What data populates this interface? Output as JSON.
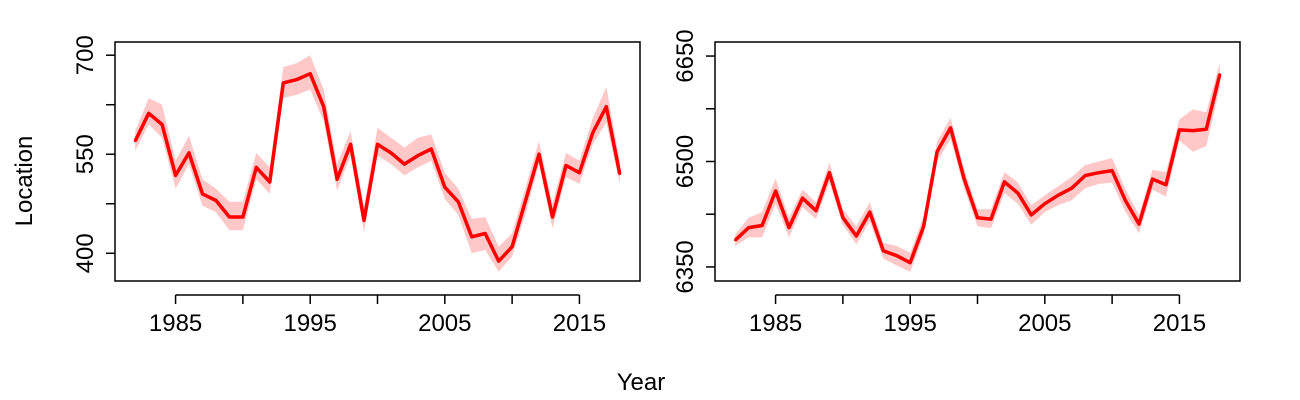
{
  "figure": {
    "xlabel": "Year",
    "ylabel": "Location",
    "line_color": "#ff0000",
    "band_color": "#ffc8c8"
  },
  "chart_data": [
    {
      "type": "line",
      "x_ticks": [
        1985,
        1995,
        2005,
        2015
      ],
      "y_ticks": [
        400,
        550,
        700
      ],
      "xlim": [
        1980.5,
        2019.5
      ],
      "ylim": [
        358,
        720
      ],
      "series": [
        {
          "x": [
            1982,
            1983,
            1984,
            1985,
            1986,
            1987,
            1988,
            1989,
            1990,
            1991,
            1992,
            1993,
            1994,
            1995,
            1996,
            1997,
            1998,
            1999,
            2000,
            2001,
            2002,
            2003,
            2004,
            2005,
            2006,
            2007,
            2008,
            2009,
            2010,
            2011,
            2012,
            2013,
            2014,
            2015,
            2016,
            2017,
            2018
          ],
          "y": [
            570,
            612,
            595,
            518,
            552,
            490,
            480,
            455,
            455,
            530,
            508,
            658,
            663,
            672,
            622,
            512,
            565,
            450,
            565,
            552,
            535,
            548,
            558,
            500,
            478,
            425,
            430,
            388,
            410,
            480,
            550,
            455,
            533,
            522,
            583,
            622,
            520
          ],
          "lower": [
            555,
            595,
            575,
            498,
            535,
            472,
            462,
            435,
            435,
            512,
            490,
            635,
            640,
            648,
            600,
            495,
            548,
            432,
            548,
            535,
            518,
            530,
            540,
            482,
            458,
            400,
            405,
            372,
            395,
            460,
            535,
            438,
            515,
            505,
            565,
            598,
            505
          ],
          "upper": [
            585,
            635,
            625,
            540,
            578,
            512,
            498,
            478,
            478,
            552,
            530,
            682,
            688,
            700,
            648,
            535,
            585,
            470,
            590,
            575,
            560,
            575,
            580,
            522,
            498,
            452,
            455,
            410,
            430,
            500,
            570,
            475,
            552,
            540,
            605,
            652,
            540
          ]
        }
      ]
    },
    {
      "type": "line",
      "x_ticks": [
        1985,
        1995,
        2005,
        2015
      ],
      "y_ticks": [
        6350,
        6500,
        6650
      ],
      "xlim": [
        1980.5,
        2019.5
      ],
      "ylim": [
        6330,
        6670
      ],
      "series": [
        {
          "x": [
            1982,
            1983,
            1984,
            1985,
            1986,
            1987,
            1988,
            1989,
            1990,
            1991,
            1992,
            1993,
            1994,
            1995,
            1996,
            1997,
            1998,
            1999,
            2000,
            2001,
            2002,
            2003,
            2004,
            2005,
            2006,
            2007,
            2008,
            2009,
            2010,
            2011,
            2012,
            2013,
            2014,
            2015,
            2016,
            2017,
            2018
          ],
          "y": [
            6388,
            6406,
            6409,
            6458,
            6406,
            6448,
            6430,
            6484,
            6420,
            6394,
            6428,
            6373,
            6366,
            6356,
            6408,
            6514,
            6548,
            6476,
            6420,
            6418,
            6471,
            6455,
            6424,
            6440,
            6452,
            6462,
            6480,
            6484,
            6487,
            6444,
            6411,
            6475,
            6467,
            6545,
            6544,
            6546,
            6624
          ],
          "lower": [
            6380,
            6392,
            6392,
            6440,
            6392,
            6435,
            6418,
            6470,
            6410,
            6382,
            6415,
            6362,
            6352,
            6343,
            6395,
            6500,
            6532,
            6462,
            6408,
            6405,
            6455,
            6440,
            6410,
            6428,
            6438,
            6445,
            6462,
            6468,
            6470,
            6428,
            6398,
            6460,
            6450,
            6530,
            6514,
            6522,
            6605
          ],
          "upper": [
            6396,
            6420,
            6428,
            6476,
            6420,
            6460,
            6442,
            6498,
            6432,
            6408,
            6442,
            6384,
            6380,
            6370,
            6422,
            6528,
            6562,
            6490,
            6432,
            6432,
            6485,
            6470,
            6438,
            6452,
            6465,
            6478,
            6495,
            6500,
            6505,
            6460,
            6424,
            6488,
            6485,
            6560,
            6574,
            6570,
            6640
          ]
        }
      ]
    }
  ]
}
